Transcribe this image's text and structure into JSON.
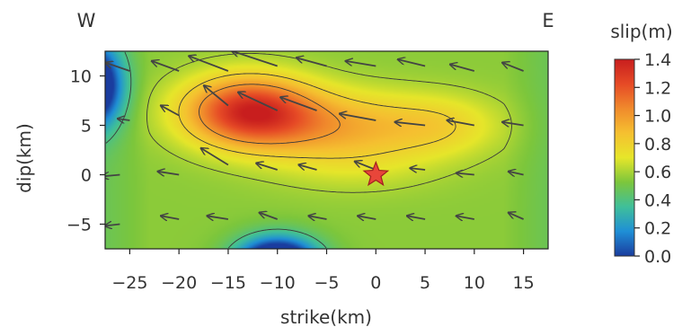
{
  "chart_data": {
    "type": "heatmap",
    "title": "",
    "xlabel": "strike(km)",
    "ylabel": "dip(km)",
    "xlim": [
      -27.5,
      17.5
    ],
    "ylim": [
      -7.5,
      12.5
    ],
    "x_ticks": [
      -25,
      -20,
      -15,
      -10,
      -5,
      0,
      5,
      10,
      15
    ],
    "x_tick_labels": [
      "−25",
      "−20",
      "−15",
      "−10",
      "−5",
      "0",
      "5",
      "10",
      "15"
    ],
    "y_ticks": [
      -5,
      0,
      5,
      10
    ],
    "y_tick_labels": [
      "−5",
      "0",
      "5",
      "10"
    ],
    "direction_labels": {
      "left": "W",
      "right": "E"
    },
    "grid": false,
    "colorbar": {
      "title": "slip(m)",
      "range": [
        0.0,
        1.4
      ],
      "ticks": [
        0.0,
        0.2,
        0.4,
        0.6,
        0.8,
        1.0,
        1.2,
        1.4
      ],
      "tick_labels": [
        "0.0",
        "0.2",
        "0.4",
        "0.6",
        "0.8",
        "1.0",
        "1.2",
        "1.4"
      ],
      "colors": [
        "#1a3c9e",
        "#1f8fd6",
        "#3fbf9a",
        "#7cc63c",
        "#e6e62a",
        "#f5c030",
        "#f08a2c",
        "#e64a26",
        "#c81e1e"
      ],
      "placement": "right"
    },
    "contour_levels": [
      0.4,
      0.6,
      0.8,
      1.0
    ],
    "hypocenter": {
      "strike": 0,
      "dip": 0,
      "marker": "star",
      "color": "#e8463a"
    },
    "slip_peaks": [
      {
        "strike": -13,
        "dip": 6.5,
        "slip": 1.28,
        "rx": 6.5,
        "ry": 3.5
      },
      {
        "strike": -4,
        "dip": 5,
        "slip": 0.9,
        "rx": 10,
        "ry": 3.5
      },
      {
        "strike": 7,
        "dip": 5,
        "slip": 0.72,
        "rx": 6,
        "ry": 3
      },
      {
        "strike": -2,
        "dip": 1,
        "slip": 0.65,
        "rx": 9,
        "ry": 3
      },
      {
        "strike": -10,
        "dip": -9,
        "slip": -0.5,
        "rx": 4,
        "ry": 2.5
      },
      {
        "strike": -29,
        "dip": 9,
        "slip": -0.35,
        "rx": 3,
        "ry": 4
      }
    ],
    "slip_vectors": [
      {
        "strike": -25,
        "dip": 10.5,
        "u": -0.8,
        "v": 0.5
      },
      {
        "strike": -20,
        "dip": 10.5,
        "u": -0.9,
        "v": 0.6
      },
      {
        "strike": -15,
        "dip": 10.5,
        "u": -1.3,
        "v": 0.9
      },
      {
        "strike": -10,
        "dip": 11,
        "u": -1.5,
        "v": 0.9
      },
      {
        "strike": -5,
        "dip": 11,
        "u": -1.0,
        "v": 0.5
      },
      {
        "strike": 0,
        "dip": 11,
        "u": -1.0,
        "v": 0.3
      },
      {
        "strike": 5,
        "dip": 11,
        "u": -0.9,
        "v": 0.4
      },
      {
        "strike": 10,
        "dip": 10.5,
        "u": -0.8,
        "v": 0.4
      },
      {
        "strike": 15,
        "dip": 10.5,
        "u": -0.7,
        "v": 0.5
      },
      {
        "strike": -25,
        "dip": 5.5,
        "u": -0.4,
        "v": 0.1
      },
      {
        "strike": -20,
        "dip": 6,
        "u": -0.6,
        "v": 0.6
      },
      {
        "strike": -15,
        "dip": 7,
        "u": -0.8,
        "v": 1.2
      },
      {
        "strike": -10,
        "dip": 6.5,
        "u": -1.3,
        "v": 1.1
      },
      {
        "strike": -6,
        "dip": 6.5,
        "u": -1.2,
        "v": 0.8
      },
      {
        "strike": 0,
        "dip": 5.5,
        "u": -1.2,
        "v": 0.4
      },
      {
        "strike": 5,
        "dip": 5,
        "u": -1.0,
        "v": 0.2
      },
      {
        "strike": 10,
        "dip": 5,
        "u": -0.9,
        "v": 0.3
      },
      {
        "strike": 15,
        "dip": 5,
        "u": -0.7,
        "v": 0.2
      },
      {
        "strike": -26,
        "dip": 0,
        "u": -0.6,
        "v": -0.1
      },
      {
        "strike": -20,
        "dip": 0,
        "u": -0.7,
        "v": 0.2
      },
      {
        "strike": -15,
        "dip": 1,
        "u": -0.9,
        "v": 1.0
      },
      {
        "strike": -10,
        "dip": 0.5,
        "u": -0.7,
        "v": 0.4
      },
      {
        "strike": -6,
        "dip": 0.5,
        "u": -0.6,
        "v": 0.3
      },
      {
        "strike": 0,
        "dip": 0.5,
        "u": -0.7,
        "v": 0.5
      },
      {
        "strike": 5,
        "dip": 0.5,
        "u": -0.5,
        "v": 0.1
      },
      {
        "strike": 10,
        "dip": 0,
        "u": -0.6,
        "v": 0.1
      },
      {
        "strike": 15,
        "dip": 0,
        "u": -0.5,
        "v": 0.2
      },
      {
        "strike": -26,
        "dip": -5,
        "u": -0.5,
        "v": -0.1
      },
      {
        "strike": -20,
        "dip": -4.5,
        "u": -0.6,
        "v": 0.2
      },
      {
        "strike": -15,
        "dip": -4.5,
        "u": -0.7,
        "v": 0.2
      },
      {
        "strike": -10,
        "dip": -4.5,
        "u": -0.6,
        "v": 0.4
      },
      {
        "strike": -5,
        "dip": -4.5,
        "u": -0.6,
        "v": 0.2
      },
      {
        "strike": 0,
        "dip": -4.5,
        "u": -0.6,
        "v": 0.2
      },
      {
        "strike": 5,
        "dip": -4.5,
        "u": -0.6,
        "v": 0.2
      },
      {
        "strike": 10,
        "dip": -4.5,
        "u": -0.6,
        "v": 0.2
      },
      {
        "strike": 15,
        "dip": -4.5,
        "u": -0.5,
        "v": 0.4
      }
    ]
  }
}
